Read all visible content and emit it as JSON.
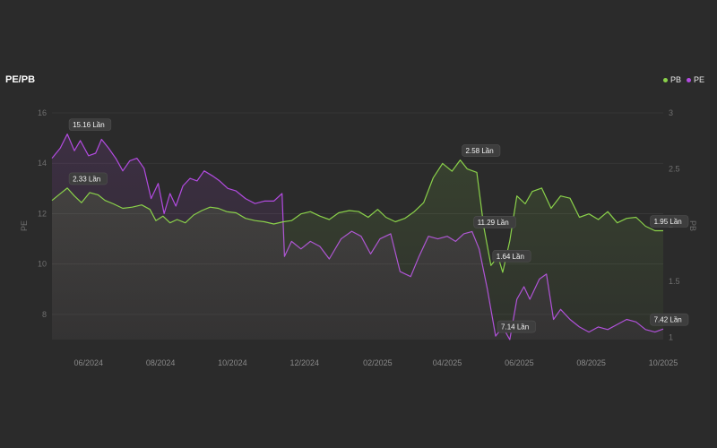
{
  "header": {
    "title": "PE/PB"
  },
  "colors": {
    "pb": "#8ad14a",
    "pe": "#b24be0",
    "grid": "#3a3a3a"
  },
  "chart_data": {
    "type": "line",
    "title": "PE/PB",
    "legend": {
      "position": "top-right",
      "entries": [
        "PB",
        "PE"
      ]
    },
    "grid": true,
    "y_left": {
      "label": "PE",
      "range": [
        7,
        16
      ],
      "ticks": [
        "16",
        "14",
        "12",
        "10",
        "8"
      ]
    },
    "y_right": {
      "label": "PB",
      "range": [
        0.98,
        3
      ],
      "ticks": [
        "3",
        "2.5",
        "2",
        "1.5",
        "1"
      ]
    },
    "x_ticks": [
      "06/2024",
      "08/2024",
      "10/2024",
      "12/2024",
      "02/2025",
      "04/2025",
      "06/2025",
      "08/2025",
      "10/2025"
    ],
    "x_range": [
      "2024-05-01",
      "2025-10-01"
    ],
    "series": [
      {
        "name": "PE",
        "axis": "left",
        "points": [
          [
            "2024-05-01",
            14.2
          ],
          [
            "2024-05-08",
            14.6
          ],
          [
            "2024-05-14",
            15.16
          ],
          [
            "2024-05-20",
            14.5
          ],
          [
            "2024-05-25",
            14.9
          ],
          [
            "2024-06-01",
            14.3
          ],
          [
            "2024-06-07",
            14.4
          ],
          [
            "2024-06-12",
            14.95
          ],
          [
            "2024-06-18",
            14.6
          ],
          [
            "2024-06-24",
            14.2
          ],
          [
            "2024-06-30",
            13.7
          ],
          [
            "2024-07-06",
            14.1
          ],
          [
            "2024-07-12",
            14.2
          ],
          [
            "2024-07-18",
            13.8
          ],
          [
            "2024-07-24",
            12.6
          ],
          [
            "2024-07-30",
            13.2
          ],
          [
            "2024-08-04",
            12.0
          ],
          [
            "2024-08-09",
            12.8
          ],
          [
            "2024-08-14",
            12.3
          ],
          [
            "2024-08-20",
            13.1
          ],
          [
            "2024-08-26",
            13.4
          ],
          [
            "2024-09-01",
            13.3
          ],
          [
            "2024-09-07",
            13.7
          ],
          [
            "2024-09-14",
            13.5
          ],
          [
            "2024-09-20",
            13.3
          ],
          [
            "2024-09-27",
            13.0
          ],
          [
            "2024-10-04",
            12.9
          ],
          [
            "2024-10-12",
            12.6
          ],
          [
            "2024-10-20",
            12.4
          ],
          [
            "2024-10-28",
            12.5
          ],
          [
            "2024-11-05",
            12.5
          ],
          [
            "2024-11-12",
            12.8
          ],
          [
            "2024-11-14",
            10.3
          ],
          [
            "2024-11-20",
            10.9
          ],
          [
            "2024-11-28",
            10.6
          ],
          [
            "2024-12-06",
            10.9
          ],
          [
            "2024-12-14",
            10.7
          ],
          [
            "2024-12-22",
            10.2
          ],
          [
            "2025-01-01",
            11.0
          ],
          [
            "2025-01-10",
            11.3
          ],
          [
            "2025-01-18",
            11.1
          ],
          [
            "2025-01-26",
            10.4
          ],
          [
            "2025-02-03",
            11.0
          ],
          [
            "2025-02-12",
            11.2
          ],
          [
            "2025-02-20",
            9.7
          ],
          [
            "2025-03-01",
            9.5
          ],
          [
            "2025-03-08",
            10.3
          ],
          [
            "2025-03-16",
            11.1
          ],
          [
            "2025-03-24",
            11.0
          ],
          [
            "2025-04-01",
            11.1
          ],
          [
            "2025-04-08",
            10.9
          ],
          [
            "2025-04-15",
            11.2
          ],
          [
            "2025-04-22",
            11.29
          ],
          [
            "2025-04-28",
            10.6
          ],
          [
            "2025-05-05",
            9.0
          ],
          [
            "2025-05-12",
            7.14
          ],
          [
            "2025-05-18",
            7.5
          ],
          [
            "2025-05-24",
            7.0
          ],
          [
            "2025-05-30",
            8.6
          ],
          [
            "2025-06-05",
            9.1
          ],
          [
            "2025-06-10",
            8.6
          ],
          [
            "2025-06-18",
            9.4
          ],
          [
            "2025-06-24",
            9.6
          ],
          [
            "2025-06-30",
            7.8
          ],
          [
            "2025-07-06",
            8.2
          ],
          [
            "2025-07-14",
            7.8
          ],
          [
            "2025-07-22",
            7.5
          ],
          [
            "2025-07-30",
            7.3
          ],
          [
            "2025-08-07",
            7.5
          ],
          [
            "2025-08-15",
            7.4
          ],
          [
            "2025-08-23",
            7.6
          ],
          [
            "2025-08-31",
            7.8
          ],
          [
            "2025-09-08",
            7.7
          ],
          [
            "2025-09-16",
            7.4
          ],
          [
            "2025-09-24",
            7.3
          ],
          [
            "2025-10-01",
            7.42
          ]
        ]
      },
      {
        "name": "PB",
        "axis": "right",
        "points": [
          [
            "2024-05-01",
            2.22
          ],
          [
            "2024-05-08",
            2.28
          ],
          [
            "2024-05-14",
            2.33
          ],
          [
            "2024-05-20",
            2.26
          ],
          [
            "2024-05-26",
            2.2
          ],
          [
            "2024-06-02",
            2.29
          ],
          [
            "2024-06-09",
            2.27
          ],
          [
            "2024-06-15",
            2.22
          ],
          [
            "2024-06-22",
            2.19
          ],
          [
            "2024-06-30",
            2.15
          ],
          [
            "2024-07-08",
            2.16
          ],
          [
            "2024-07-16",
            2.18
          ],
          [
            "2024-07-23",
            2.14
          ],
          [
            "2024-07-28",
            2.04
          ],
          [
            "2024-08-03",
            2.08
          ],
          [
            "2024-08-09",
            2.02
          ],
          [
            "2024-08-15",
            2.05
          ],
          [
            "2024-08-22",
            2.02
          ],
          [
            "2024-08-29",
            2.09
          ],
          [
            "2024-09-05",
            2.13
          ],
          [
            "2024-09-12",
            2.16
          ],
          [
            "2024-09-19",
            2.15
          ],
          [
            "2024-09-26",
            2.12
          ],
          [
            "2024-10-04",
            2.11
          ],
          [
            "2024-10-12",
            2.06
          ],
          [
            "2024-10-20",
            2.04
          ],
          [
            "2024-10-28",
            2.03
          ],
          [
            "2024-11-05",
            2.01
          ],
          [
            "2024-11-13",
            2.03
          ],
          [
            "2024-11-20",
            2.04
          ],
          [
            "2024-11-28",
            2.1
          ],
          [
            "2024-12-06",
            2.12
          ],
          [
            "2024-12-14",
            2.08
          ],
          [
            "2024-12-22",
            2.05
          ],
          [
            "2024-12-30",
            2.11
          ],
          [
            "2025-01-08",
            2.13
          ],
          [
            "2025-01-16",
            2.12
          ],
          [
            "2025-01-24",
            2.07
          ],
          [
            "2025-02-01",
            2.14
          ],
          [
            "2025-02-08",
            2.07
          ],
          [
            "2025-02-16",
            2.03
          ],
          [
            "2025-02-24",
            2.06
          ],
          [
            "2025-03-04",
            2.12
          ],
          [
            "2025-03-12",
            2.2
          ],
          [
            "2025-03-20",
            2.42
          ],
          [
            "2025-03-28",
            2.55
          ],
          [
            "2025-04-05",
            2.48
          ],
          [
            "2025-04-12",
            2.58
          ],
          [
            "2025-04-18",
            2.5
          ],
          [
            "2025-04-26",
            2.47
          ],
          [
            "2025-05-02",
            1.98
          ],
          [
            "2025-05-08",
            1.64
          ],
          [
            "2025-05-14",
            1.72
          ],
          [
            "2025-05-18",
            1.58
          ],
          [
            "2025-05-24",
            1.86
          ],
          [
            "2025-05-30",
            2.26
          ],
          [
            "2025-06-06",
            2.19
          ],
          [
            "2025-06-12",
            2.3
          ],
          [
            "2025-06-20",
            2.33
          ],
          [
            "2025-06-28",
            2.15
          ],
          [
            "2025-07-06",
            2.26
          ],
          [
            "2025-07-14",
            2.24
          ],
          [
            "2025-07-22",
            2.07
          ],
          [
            "2025-07-30",
            2.1
          ],
          [
            "2025-08-07",
            2.05
          ],
          [
            "2025-08-15",
            2.12
          ],
          [
            "2025-08-23",
            2.02
          ],
          [
            "2025-08-31",
            2.06
          ],
          [
            "2025-09-08",
            2.07
          ],
          [
            "2025-09-16",
            1.99
          ],
          [
            "2025-09-24",
            1.95
          ],
          [
            "2025-10-01",
            1.95
          ]
        ]
      }
    ],
    "annotations": [
      {
        "series": "PE",
        "date": "2024-05-14",
        "value": 15.16,
        "text": "15.16 Lần"
      },
      {
        "series": "PB",
        "date": "2024-05-14",
        "value": 2.33,
        "text": "2.33 Lần"
      },
      {
        "series": "PB",
        "date": "2025-04-12",
        "value": 2.58,
        "text": "2.58 Lần"
      },
      {
        "series": "PE",
        "date": "2025-04-22",
        "value": 11.29,
        "text": "11.29 Lần"
      },
      {
        "series": "PB",
        "date": "2025-05-08",
        "value": 1.64,
        "text": "1.64 Lần"
      },
      {
        "series": "PE",
        "date": "2025-05-12",
        "value": 7.14,
        "text": "7.14 Lần"
      },
      {
        "series": "PB",
        "date": "2025-10-01",
        "value": 1.95,
        "text": "1.95 Lần"
      },
      {
        "series": "PE",
        "date": "2025-10-01",
        "value": 7.42,
        "text": "7.42 Lần"
      }
    ]
  }
}
